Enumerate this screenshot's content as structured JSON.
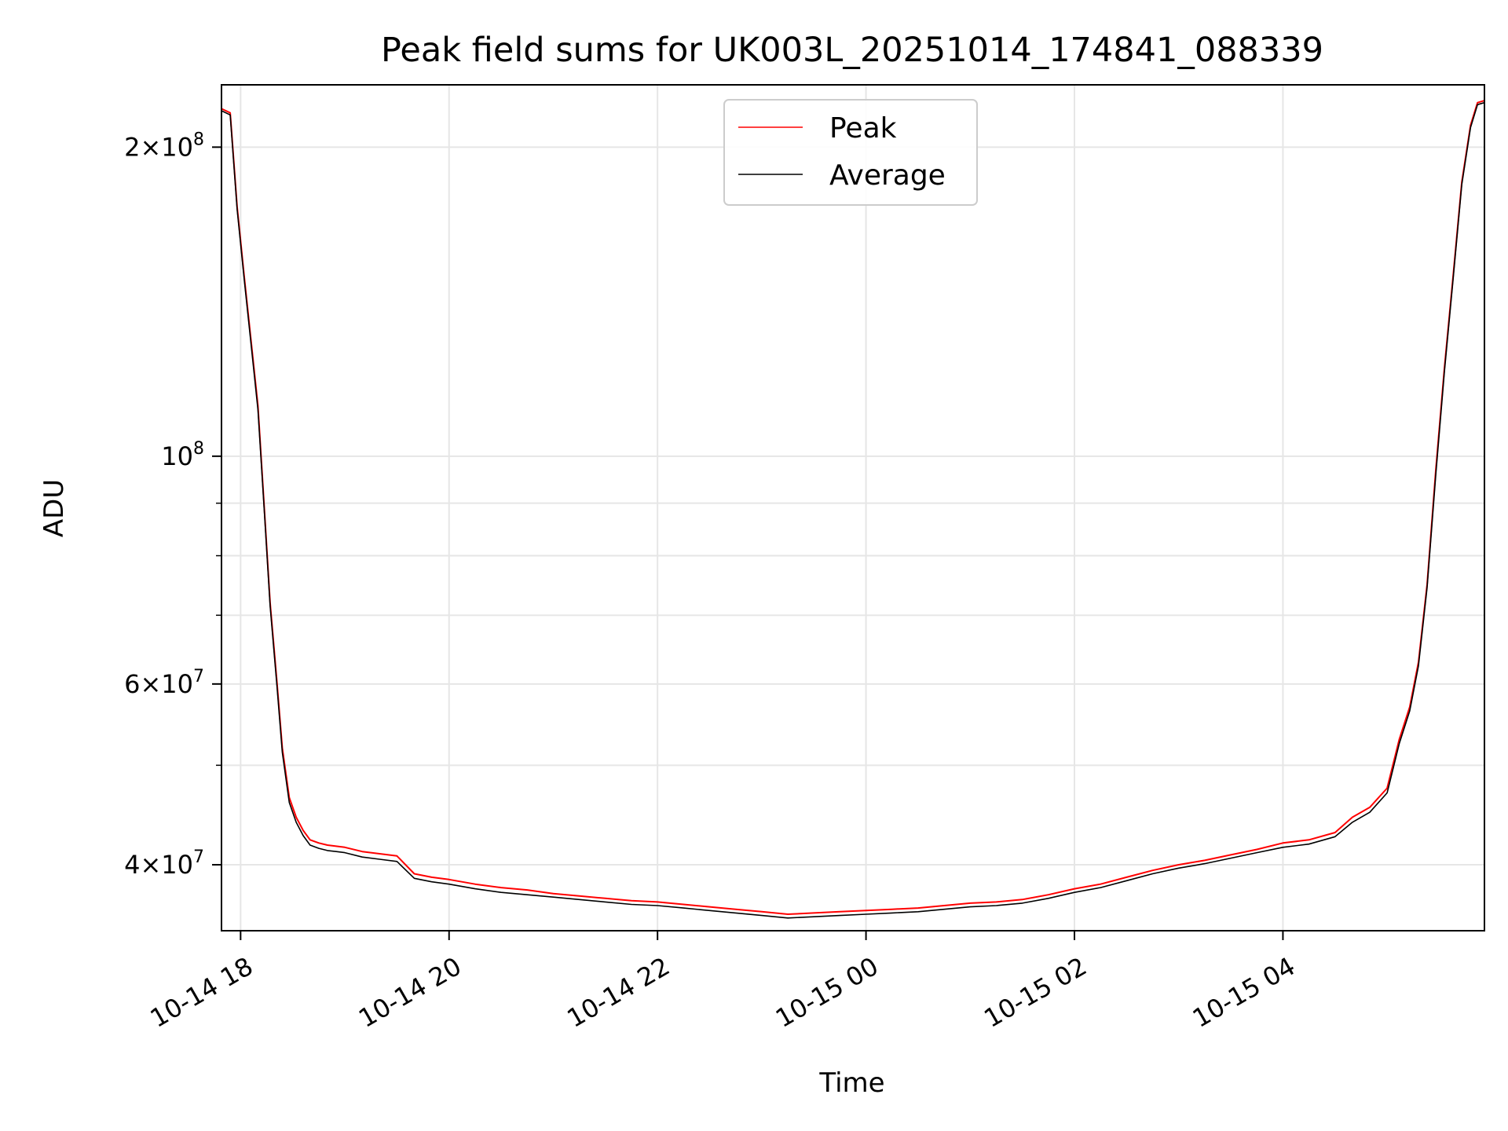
{
  "chart_data": {
    "type": "line",
    "title": "Peak field sums for UK003L_20251014_174841_088339",
    "xlabel": "Time",
    "ylabel": "ADU",
    "yscale": "log",
    "xlim": [
      "2025-10-14 17:49",
      "2025-10-15 05:56"
    ],
    "ylim": [
      34500000,
      230000000
    ],
    "grid": true,
    "legend_position": "upper center",
    "x_ticks": [
      {
        "time": "2025-10-14 18:00",
        "label": "10-14 18"
      },
      {
        "time": "2025-10-14 20:00",
        "label": "10-14 20"
      },
      {
        "time": "2025-10-14 22:00",
        "label": "10-14 22"
      },
      {
        "time": "2025-10-15 00:00",
        "label": "10-15 00"
      },
      {
        "time": "2025-10-15 02:00",
        "label": "10-15 02"
      },
      {
        "time": "2025-10-15 04:00",
        "label": "10-15 04"
      }
    ],
    "y_major_ticks": [
      {
        "value": 40000000,
        "mant": "4",
        "exp": "7"
      },
      {
        "value": 60000000,
        "mant": "6",
        "exp": "7"
      },
      {
        "value": 100000000,
        "mant": "",
        "exp": "8"
      },
      {
        "value": 200000000,
        "mant": "2",
        "exp": "8"
      }
    ],
    "y_minor_ticks": [
      50000000,
      70000000,
      80000000,
      90000000
    ],
    "series": [
      {
        "name": "Peak",
        "color": "#ff0000",
        "x": [
          "2025-10-14 17:49",
          "2025-10-14 17:54",
          "2025-10-14 17:58",
          "2025-10-14 18:02",
          "2025-10-14 18:07",
          "2025-10-14 18:10",
          "2025-10-14 18:14",
          "2025-10-14 18:17",
          "2025-10-14 18:21",
          "2025-10-14 18:24",
          "2025-10-14 18:28",
          "2025-10-14 18:32",
          "2025-10-14 18:36",
          "2025-10-14 18:40",
          "2025-10-14 18:45",
          "2025-10-14 18:50",
          "2025-10-14 18:55",
          "2025-10-14 19:00",
          "2025-10-14 19:10",
          "2025-10-14 19:20",
          "2025-10-14 19:30",
          "2025-10-14 19:40",
          "2025-10-14 19:50",
          "2025-10-14 20:00",
          "2025-10-14 20:15",
          "2025-10-14 20:30",
          "2025-10-14 20:45",
          "2025-10-14 21:00",
          "2025-10-14 21:15",
          "2025-10-14 21:30",
          "2025-10-14 21:45",
          "2025-10-14 22:00",
          "2025-10-14 22:15",
          "2025-10-14 22:30",
          "2025-10-14 22:45",
          "2025-10-14 23:00",
          "2025-10-14 23:15",
          "2025-10-14 23:30",
          "2025-10-14 23:45",
          "2025-10-15 00:00",
          "2025-10-15 00:15",
          "2025-10-15 00:30",
          "2025-10-15 00:45",
          "2025-10-15 01:00",
          "2025-10-15 01:15",
          "2025-10-15 01:30",
          "2025-10-15 01:45",
          "2025-10-15 02:00",
          "2025-10-15 02:15",
          "2025-10-15 02:30",
          "2025-10-15 02:45",
          "2025-10-15 03:00",
          "2025-10-15 03:15",
          "2025-10-15 03:30",
          "2025-10-15 03:45",
          "2025-10-15 04:00",
          "2025-10-15 04:15",
          "2025-10-15 04:30",
          "2025-10-15 04:40",
          "2025-10-15 04:50",
          "2025-10-15 05:00",
          "2025-10-15 05:07",
          "2025-10-15 05:13",
          "2025-10-15 05:18",
          "2025-10-15 05:23",
          "2025-10-15 05:28",
          "2025-10-15 05:33",
          "2025-10-15 05:38",
          "2025-10-15 05:43",
          "2025-10-15 05:48",
          "2025-10-15 05:52",
          "2025-10-15 05:56"
        ],
        "values": [
          218000000,
          216000000,
          175000000,
          150000000,
          125000000,
          112000000,
          87000000,
          72000000,
          60000000,
          52000000,
          46500000,
          44500000,
          43200000,
          42300000,
          42000000,
          41800000,
          41700000,
          41600000,
          41200000,
          41000000,
          40800000,
          39200000,
          38900000,
          38700000,
          38300000,
          38000000,
          37800000,
          37500000,
          37300000,
          37100000,
          36900000,
          36800000,
          36600000,
          36400000,
          36200000,
          36000000,
          35800000,
          35900000,
          36000000,
          36100000,
          36200000,
          36300000,
          36500000,
          36700000,
          36800000,
          37000000,
          37400000,
          37900000,
          38300000,
          38900000,
          39500000,
          40000000,
          40400000,
          40900000,
          41400000,
          42000000,
          42300000,
          43000000,
          44500000,
          45500000,
          47500000,
          53000000,
          57000000,
          63000000,
          75000000,
          97000000,
          122000000,
          150000000,
          185000000,
          210000000,
          221000000,
          222000000
        ]
      },
      {
        "name": "Average",
        "color": "#000000",
        "x": [
          "2025-10-14 17:49",
          "2025-10-14 17:54",
          "2025-10-14 17:58",
          "2025-10-14 18:02",
          "2025-10-14 18:07",
          "2025-10-14 18:10",
          "2025-10-14 18:14",
          "2025-10-14 18:17",
          "2025-10-14 18:21",
          "2025-10-14 18:24",
          "2025-10-14 18:28",
          "2025-10-14 18:32",
          "2025-10-14 18:36",
          "2025-10-14 18:40",
          "2025-10-14 18:45",
          "2025-10-14 18:50",
          "2025-10-14 18:55",
          "2025-10-14 19:00",
          "2025-10-14 19:10",
          "2025-10-14 19:20",
          "2025-10-14 19:30",
          "2025-10-14 19:40",
          "2025-10-14 19:50",
          "2025-10-14 20:00",
          "2025-10-14 20:15",
          "2025-10-14 20:30",
          "2025-10-14 20:45",
          "2025-10-14 21:00",
          "2025-10-14 21:15",
          "2025-10-14 21:30",
          "2025-10-14 21:45",
          "2025-10-14 22:00",
          "2025-10-14 22:15",
          "2025-10-14 22:30",
          "2025-10-14 22:45",
          "2025-10-14 23:00",
          "2025-10-14 23:15",
          "2025-10-14 23:30",
          "2025-10-14 23:45",
          "2025-10-15 00:00",
          "2025-10-15 00:15",
          "2025-10-15 00:30",
          "2025-10-15 00:45",
          "2025-10-15 01:00",
          "2025-10-15 01:15",
          "2025-10-15 01:30",
          "2025-10-15 01:45",
          "2025-10-15 02:00",
          "2025-10-15 02:15",
          "2025-10-15 02:30",
          "2025-10-15 02:45",
          "2025-10-15 03:00",
          "2025-10-15 03:15",
          "2025-10-15 03:30",
          "2025-10-15 03:45",
          "2025-10-15 04:00",
          "2025-10-15 04:15",
          "2025-10-15 04:30",
          "2025-10-15 04:40",
          "2025-10-15 04:50",
          "2025-10-15 05:00",
          "2025-10-15 05:07",
          "2025-10-15 05:13",
          "2025-10-15 05:18",
          "2025-10-15 05:23",
          "2025-10-15 05:28",
          "2025-10-15 05:33",
          "2025-10-15 05:38",
          "2025-10-15 05:43",
          "2025-10-15 05:48",
          "2025-10-15 05:52",
          "2025-10-15 05:56"
        ],
        "values": [
          217000000,
          215000000,
          174000000,
          149000000,
          124000000,
          111000000,
          86500000,
          71500000,
          59500000,
          51500000,
          46000000,
          44000000,
          42700000,
          41800000,
          41500000,
          41300000,
          41200000,
          41100000,
          40700000,
          40500000,
          40300000,
          38800000,
          38500000,
          38300000,
          37900000,
          37600000,
          37400000,
          37200000,
          37000000,
          36800000,
          36600000,
          36500000,
          36300000,
          36100000,
          35900000,
          35700000,
          35500000,
          35600000,
          35700000,
          35800000,
          35900000,
          36000000,
          36200000,
          36400000,
          36500000,
          36700000,
          37100000,
          37600000,
          38000000,
          38600000,
          39200000,
          39700000,
          40100000,
          40600000,
          41100000,
          41600000,
          41900000,
          42600000,
          44000000,
          45000000,
          47000000,
          52500000,
          56500000,
          62500000,
          74500000,
          96000000,
          121000000,
          149000000,
          184000000,
          209000000,
          220000000,
          221000000
        ]
      }
    ]
  }
}
